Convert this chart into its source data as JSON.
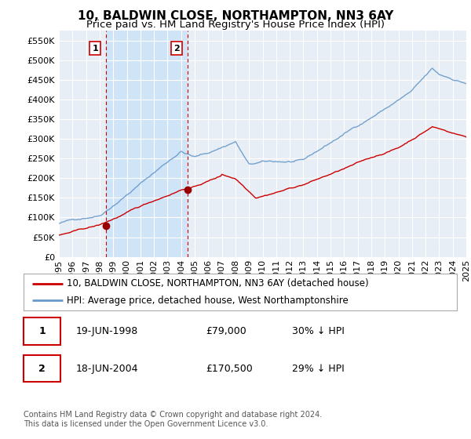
{
  "title": "10, BALDWIN CLOSE, NORTHAMPTON, NN3 6AY",
  "subtitle": "Price paid vs. HM Land Registry's House Price Index (HPI)",
  "title_fontsize": 11,
  "subtitle_fontsize": 9.5,
  "background_color": "#ffffff",
  "plot_background": "#e8eef5",
  "grid_color": "#ffffff",
  "ylim": [
    0,
    575000
  ],
  "yticks": [
    0,
    50000,
    100000,
    150000,
    200000,
    250000,
    300000,
    350000,
    400000,
    450000,
    500000,
    550000
  ],
  "transactions": [
    {
      "date_num": 1998.47,
      "price": 79000,
      "label": "1"
    },
    {
      "date_num": 2004.47,
      "price": 170500,
      "label": "2"
    }
  ],
  "shade_color": "#d0e4f7",
  "legend_entries": [
    {
      "label": "10, BALDWIN CLOSE, NORTHAMPTON, NN3 6AY (detached house)",
      "color": "#cc0000"
    },
    {
      "label": "HPI: Average price, detached house, West Northamptonshire",
      "color": "#6699cc"
    }
  ],
  "table_rows": [
    {
      "label": "1",
      "date": "19-JUN-1998",
      "amount": "£79,000",
      "pct": "30% ↓ HPI"
    },
    {
      "label": "2",
      "date": "18-JUN-2004",
      "amount": "£170,500",
      "pct": "29% ↓ HPI"
    }
  ],
  "footnote": "Contains HM Land Registry data © Crown copyright and database right 2024.\nThis data is licensed under the Open Government Licence v3.0."
}
